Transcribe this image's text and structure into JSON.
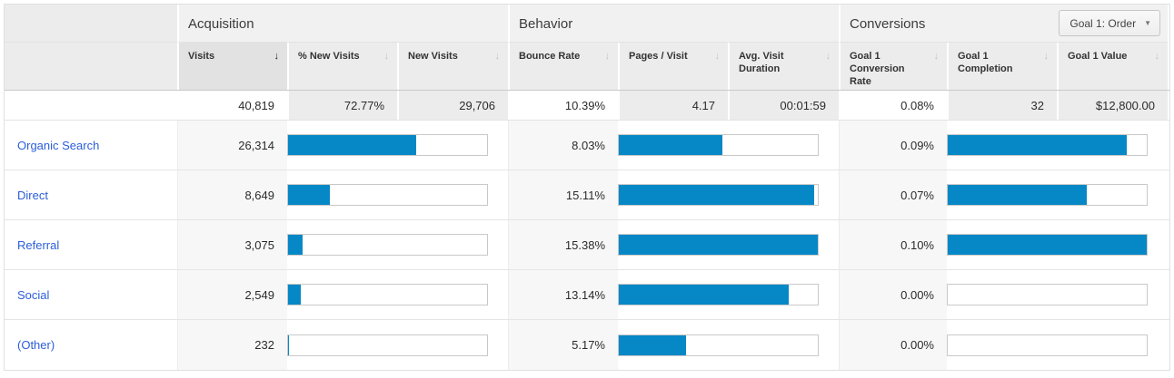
{
  "goal_selector": {
    "label": "Goal 1: Order"
  },
  "groups": {
    "acquisition": "Acquisition",
    "behavior": "Behavior",
    "conversions": "Conversions"
  },
  "columns": [
    {
      "label": "Visits",
      "sorted": true
    },
    {
      "label": "% New Visits",
      "sorted": false
    },
    {
      "label": "New Visits",
      "sorted": false
    },
    {
      "label": "Bounce Rate",
      "sorted": false
    },
    {
      "label": "Pages / Visit",
      "sorted": false
    },
    {
      "label": "Avg. Visit Duration",
      "sorted": false
    },
    {
      "label": "Goal 1 Conversion Rate",
      "sorted": false
    },
    {
      "label": "Goal 1 Completion",
      "sorted": false
    },
    {
      "label": "Goal 1 Value",
      "sorted": false
    }
  ],
  "totals": {
    "visits": "40,819",
    "pct_new_visits": "72.77%",
    "new_visits": "29,706",
    "bounce_rate": "10.39%",
    "pages_visit": "4.17",
    "avg_visit_duration": "00:01:59",
    "goal1_conversion_rate": "0.08%",
    "goal1_completion": "32",
    "goal1_value": "$12,800.00"
  },
  "totals_numeric": {
    "visits": 40819,
    "bounce_rate": 10.39,
    "goal1_conversion_rate": 0.08
  },
  "rows": [
    {
      "label": "Organic Search",
      "visits": "26,314",
      "visits_num": 26314,
      "bounce_rate": "8.03%",
      "bounce_num": 8.03,
      "goal_rate": "0.09%",
      "goal_num": 0.09
    },
    {
      "label": "Direct",
      "visits": "8,649",
      "visits_num": 8649,
      "bounce_rate": "15.11%",
      "bounce_num": 15.11,
      "goal_rate": "0.07%",
      "goal_num": 0.07
    },
    {
      "label": "Referral",
      "visits": "3,075",
      "visits_num": 3075,
      "bounce_rate": "15.38%",
      "bounce_num": 15.38,
      "goal_rate": "0.10%",
      "goal_num": 0.1
    },
    {
      "label": "Social",
      "visits": "2,549",
      "visits_num": 2549,
      "bounce_rate": "13.14%",
      "bounce_num": 13.14,
      "goal_rate": "0.00%",
      "goal_num": 0
    },
    {
      "label": "(Other)",
      "visits": "232",
      "visits_num": 232,
      "bounce_rate": "5.17%",
      "bounce_num": 5.17,
      "goal_rate": "0.00%",
      "goal_num": 0
    }
  ],
  "icons": {
    "sort_desc": "↓",
    "dropdown_arrow": "▼"
  },
  "colors": {
    "bar_fill": "#0688c6",
    "link_blue": "#2b5ed9",
    "sorted_header_bg": "#e2e2e2"
  }
}
